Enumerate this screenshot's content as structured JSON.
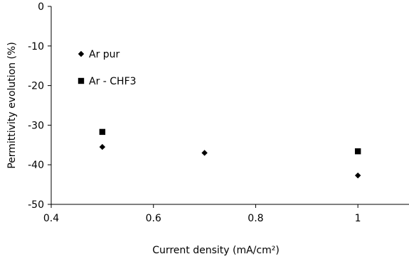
{
  "chart_data": {
    "type": "scatter",
    "title": "",
    "xlabel": "Current density (mA/cm²)",
    "ylabel": "Permittivity evolution (%)",
    "xlim": [
      0.4,
      1.1
    ],
    "ylim": [
      -50,
      0
    ],
    "xticks": [
      0.4,
      0.6,
      0.8,
      1.0
    ],
    "xtick_labels": [
      "0.4",
      "0.6",
      "0.8",
      "1"
    ],
    "yticks": [
      0,
      -10,
      -20,
      -30,
      -40,
      -50
    ],
    "ytick_labels": [
      "0",
      "-10",
      "-20",
      "-30",
      "-40",
      "-50"
    ],
    "grid": false,
    "legend_position": "upper-left",
    "series": [
      {
        "name": "Ar pur",
        "marker": "diamond",
        "color": "#000000",
        "points": [
          {
            "x": 0.5,
            "y": -35.5
          },
          {
            "x": 0.7,
            "y": -37.0
          },
          {
            "x": 1.0,
            "y": -42.7
          }
        ]
      },
      {
        "name": "Ar - CHF3",
        "marker": "square",
        "color": "#000000",
        "points": [
          {
            "x": 0.5,
            "y": -31.7
          },
          {
            "x": 1.0,
            "y": -36.6
          }
        ]
      }
    ]
  }
}
